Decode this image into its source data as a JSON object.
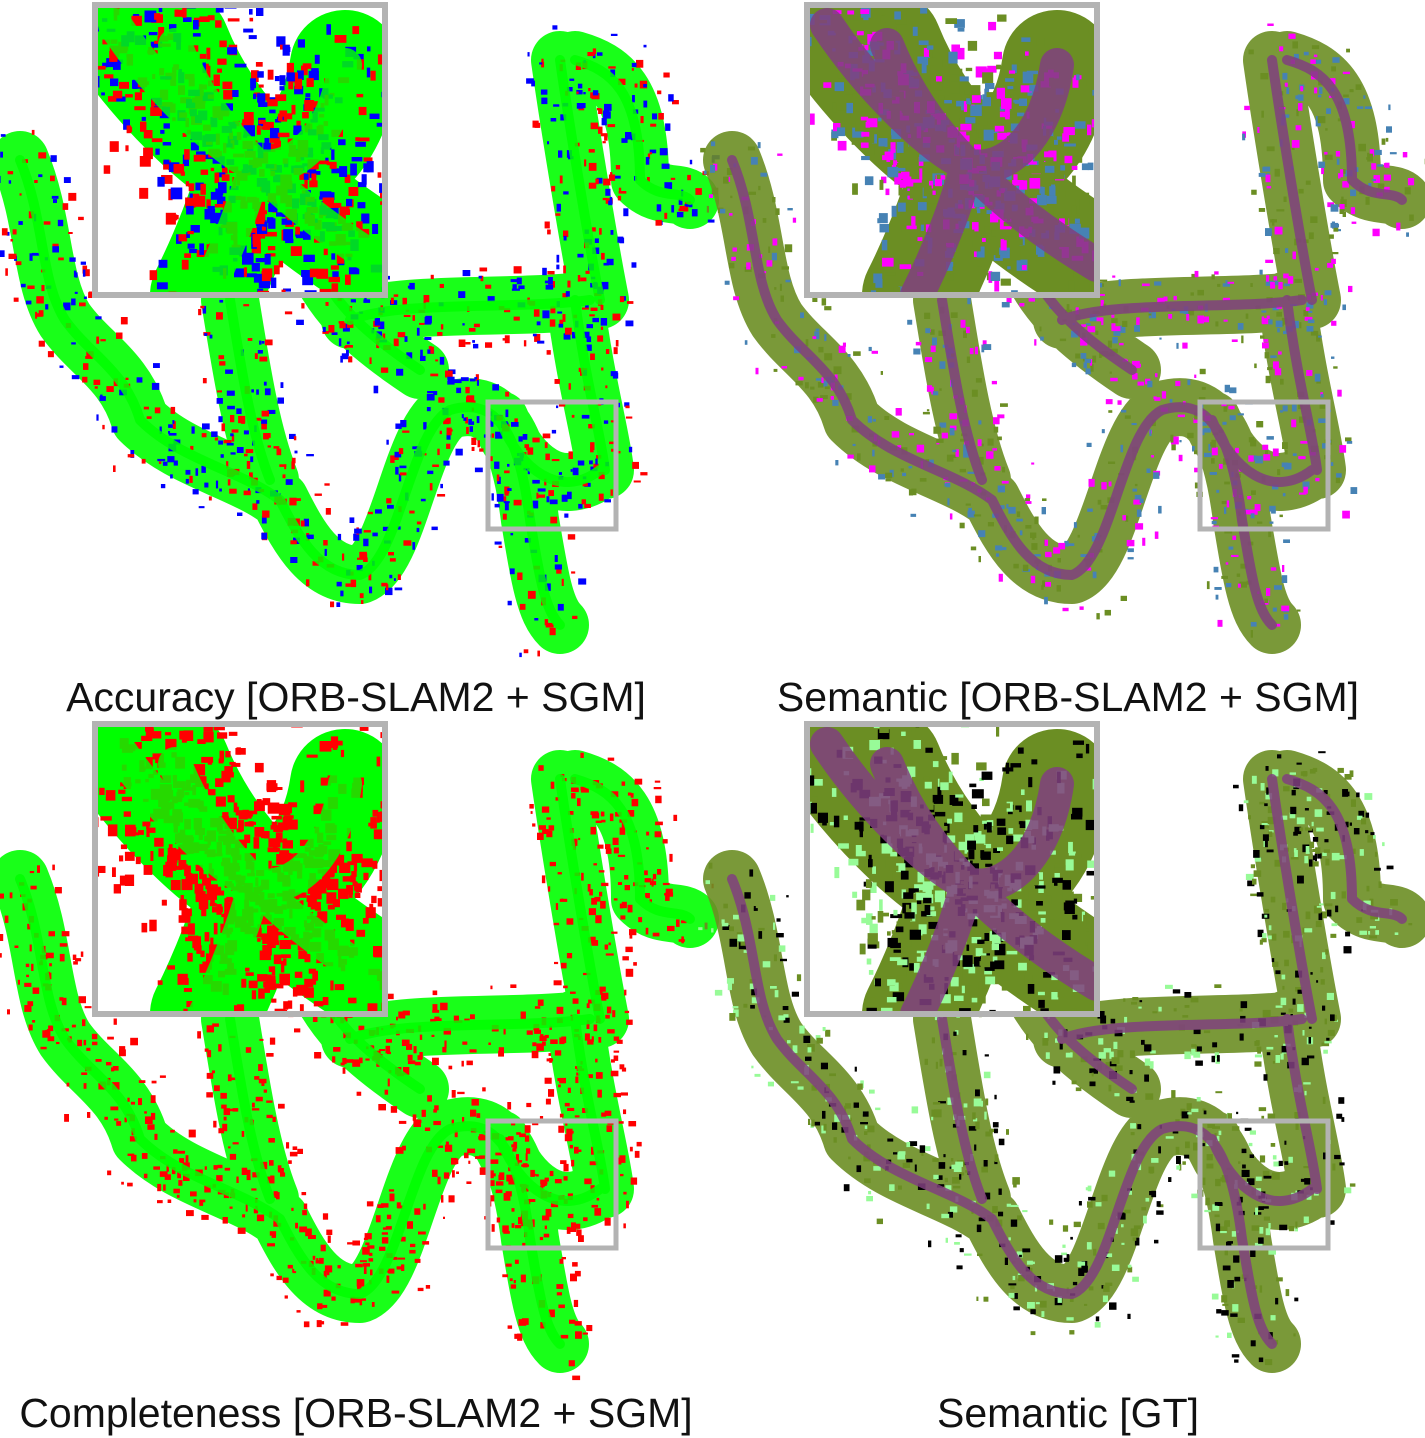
{
  "panels": [
    {
      "id": "accuracy",
      "caption": "Accuracy [ORB-SLAM2 + SGM]",
      "colors": [
        "#00ff00",
        "#ff0000",
        "#0000ff"
      ],
      "road": "#00ff00"
    },
    {
      "id": "semantic",
      "caption": "Semantic [ORB-SLAM2 + SGM]",
      "colors": [
        "#6b8e23",
        "#6b8e23",
        "#4682b4",
        "#ff00ff"
      ],
      "road": "#80407f"
    },
    {
      "id": "completeness",
      "caption": "Completeness [ORB-SLAM2 + SGM]",
      "colors": [
        "#00ff00",
        "#ff0000"
      ],
      "road": "#00ff00"
    },
    {
      "id": "semantic-gt",
      "caption": "Semantic [GT]",
      "colors": [
        "#6b8e23",
        "#6b8e23",
        "#98fb98",
        "#000000"
      ],
      "road": "#80407f"
    }
  ],
  "inset_frame_color": "#b3b3b3"
}
